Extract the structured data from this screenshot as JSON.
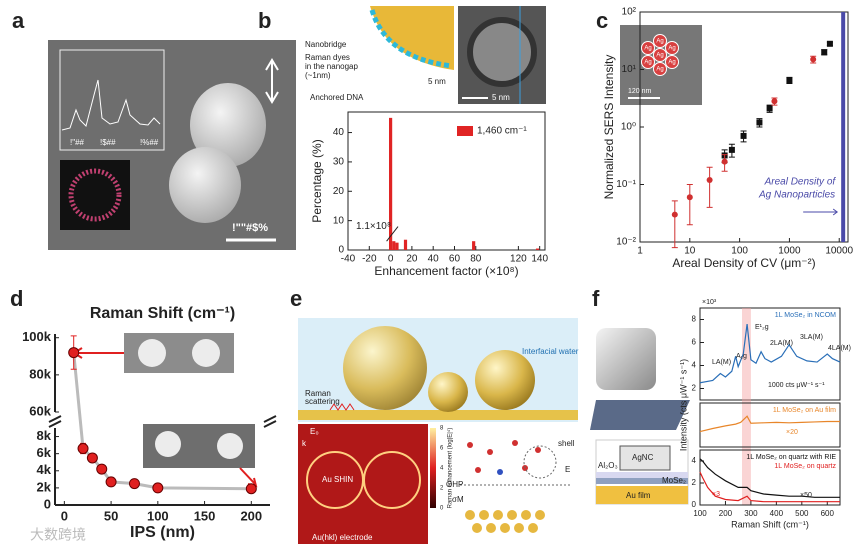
{
  "panel_labels": [
    "a",
    "b",
    "c",
    "d",
    "e",
    "f"
  ],
  "panel_a": {
    "spectrum_labels": [
      "!\"##",
      "!$##",
      "!%##"
    ],
    "image_label": "!\"\"#$%"
  },
  "panel_b": {
    "inset_labels": [
      "Nanobridge",
      "Raman dyes",
      "in the nanogap",
      "(~1nm)",
      "Anchored DNA",
      "5 nm",
      "5 nm"
    ]
  },
  "panel_e": {
    "labels": [
      "Raman",
      "scattering",
      "Interfacial water",
      "Au SHIN",
      "Au(hkl) electrode",
      "E₀",
      "k",
      "shell",
      "OHP",
      "E",
      "σM"
    ],
    "colorbar_title": "Raman enhancement (log|E|⁴)",
    "colorbar_ticks": [
      "0",
      "2",
      "4",
      "6",
      "8"
    ]
  },
  "panel_f": {
    "diagram_labels": [
      "AgNC",
      "Al₂O₃",
      "MoSe₂",
      "Au film"
    ]
  },
  "watermark": "大数跨境",
  "chart_data": [
    {
      "type": "bar",
      "xlabel": "Enhancement factor (×10⁸)",
      "ylabel": "Percentage (%)",
      "x": [
        0,
        3,
        6,
        14,
        78,
        138
      ],
      "series": [
        {
          "name": "1,460 cm⁻¹",
          "color": "#e02424",
          "values": [
            45,
            3,
            2.5,
            3.5,
            3,
            0.5
          ]
        }
      ],
      "xlim": [
        -40,
        145
      ],
      "ylim": [
        0,
        47
      ],
      "xticks": [
        -40,
        -20,
        0,
        20,
        40,
        60,
        80,
        120,
        140
      ],
      "yticks": [
        0,
        10,
        20,
        30,
        40
      ],
      "annotation": "1.1×10⁸"
    },
    {
      "type": "scatter",
      "xscale": "log",
      "yscale": "log",
      "xlabel": "Areal Density of CV (μm⁻²)",
      "ylabel": "Normalized SERS Intensity",
      "xlim": [
        1,
        15000
      ],
      "ylim": [
        0.01,
        100
      ],
      "xticks": [
        1,
        10,
        100,
        1000,
        10000
      ],
      "yticks": [
        {
          "value": 0.01,
          "label": "10⁻²"
        },
        {
          "value": 0.1,
          "label": "10⁻¹"
        },
        {
          "value": 1,
          "label": "10⁰"
        },
        {
          "value": 10,
          "label": "10¹"
        },
        {
          "value": 100,
          "label": "10²"
        }
      ],
      "series": [
        {
          "color": "#111111",
          "marker": "square",
          "x": [
            50,
            70,
            120,
            250,
            400,
            1000,
            5000,
            6500
          ],
          "values": [
            0.32,
            0.4,
            0.7,
            1.2,
            2.1,
            6.5,
            20,
            28
          ],
          "errors": [
            0.08,
            0.1,
            0.15,
            0.2,
            0.3,
            0.8,
            2,
            2
          ]
        },
        {
          "color": "#d03030",
          "marker": "circle",
          "x": [
            5,
            10,
            25,
            50,
            500,
            3000
          ],
          "values": [
            0.03,
            0.06,
            0.12,
            0.25,
            2.8,
            15
          ],
          "errors": [
            0.022,
            0.04,
            0.08,
            0.08,
            0.4,
            2
          ]
        }
      ],
      "ref_x": 12000,
      "ref_color": "#4a4aa8",
      "annotations": [
        "Areal Density of",
        "Ag Nanoparticles"
      ],
      "inset_scale": "120 nm",
      "inset_atom": "Ag"
    },
    {
      "type": "scatter",
      "title": "Raman Shift (cm⁻¹)",
      "xlabel": "IPS (nm)",
      "xlim": [
        -10,
        220
      ],
      "xticks": [
        0,
        50,
        100,
        150,
        200
      ],
      "y_segments": [
        {
          "ylim": [
            0,
            9000
          ],
          "yticks": [
            0,
            {
              "value": 2000,
              "label": "2k"
            },
            {
              "value": 4000,
              "label": "4k"
            },
            {
              "value": 6000,
              "label": "6k"
            },
            {
              "value": 8000,
              "label": "8k"
            }
          ]
        },
        {
          "ylim": [
            60000,
            102000
          ],
          "yticks": [
            {
              "value": 60000,
              "label": "60k"
            },
            {
              "value": 80000,
              "label": "80k"
            },
            {
              "value": 100000,
              "label": "100k"
            }
          ]
        }
      ],
      "line_color": "#bbbbbb",
      "series": [
        {
          "color": "#e02020",
          "marker": "circle",
          "x": [
            10,
            20,
            30,
            40,
            50,
            75,
            100,
            200
          ],
          "values": [
            92000,
            6600,
            5500,
            4200,
            2700,
            2500,
            2000,
            1900
          ],
          "errors": [
            9000,
            600,
            400,
            400,
            300,
            200,
            300,
            300
          ]
        }
      ]
    },
    {
      "type": "line",
      "ylabel": "Intensity (cts μW⁻¹ s⁻¹)",
      "xlim": [
        100,
        650
      ],
      "ylim": [
        1,
        9
      ],
      "yticks": [
        2,
        4,
        6,
        8
      ],
      "highlight": [
        265,
        300
      ],
      "annotations": [
        "×10³",
        "A₁g",
        "E¹₂g",
        "2LA(M)",
        "3LA(M)",
        "4LA(M)",
        "LA(M)",
        "1000 cts μW⁻¹ s⁻¹"
      ],
      "series": [
        {
          "name": "1L MoSe₂ in NCOM",
          "color": "#2a6fb8",
          "x": [
            100,
            150,
            180,
            200,
            225,
            240,
            250,
            270,
            285,
            300,
            320,
            340,
            355,
            380,
            420,
            450,
            480,
            520,
            560,
            600,
            620,
            650
          ],
          "values": [
            2.5,
            2.7,
            3.3,
            3.0,
            3.5,
            4.8,
            3.9,
            5.0,
            7.6,
            4.5,
            4.2,
            5.2,
            4.6,
            4.3,
            4.8,
            5.8,
            4.8,
            4.4,
            4.3,
            5.0,
            4.6,
            4.3
          ]
        }
      ]
    },
    {
      "type": "line",
      "xlim": [
        100,
        650
      ],
      "ylim": [
        0,
        10
      ],
      "annotations": [
        "×20"
      ],
      "series": [
        {
          "name": "1L MoSe₂ on Au film",
          "color": "#e8862a",
          "x": [
            100,
            150,
            200,
            240,
            260,
            285,
            300,
            350,
            400,
            450,
            500,
            550,
            600,
            650
          ],
          "values": [
            3.5,
            4.2,
            4.8,
            5.2,
            5.6,
            7.0,
            5.4,
            5.5,
            5.6,
            5.5,
            5.6,
            5.7,
            5.8,
            5.8
          ]
        }
      ]
    },
    {
      "type": "line",
      "xlabel": "Raman Shift (cm⁻¹)",
      "xlim": [
        100,
        650
      ],
      "ylim": [
        0,
        5
      ],
      "yticks": [
        0,
        2,
        4
      ],
      "xticks": [
        100,
        200,
        300,
        400,
        500,
        600
      ],
      "annotations": [
        "×3",
        "×50"
      ],
      "series": [
        {
          "name": "1L MoSe₂ on quartz with RIE",
          "color": "#111111",
          "x": [
            100,
            110,
            130,
            160,
            200,
            250,
            285,
            300,
            350,
            400,
            450,
            500,
            550,
            600,
            650
          ],
          "values": [
            4.2,
            4.0,
            3.4,
            2.8,
            2.2,
            1.6,
            1.6,
            1.3,
            1.0,
            0.9,
            0.8,
            0.8,
            0.7,
            0.7,
            0.7
          ]
        },
        {
          "name": "1L MoSe₂ on quartz",
          "color": "#e02020",
          "x": [
            100,
            110,
            130,
            160,
            200,
            250,
            285,
            300,
            350,
            400,
            450,
            500,
            550,
            600,
            650
          ],
          "values": [
            3.0,
            2.5,
            1.6,
            0.8,
            0.5,
            0.4,
            0.8,
            0.4,
            0.3,
            0.3,
            0.3,
            0.3,
            0.3,
            0.3,
            0.3
          ]
        }
      ]
    }
  ]
}
